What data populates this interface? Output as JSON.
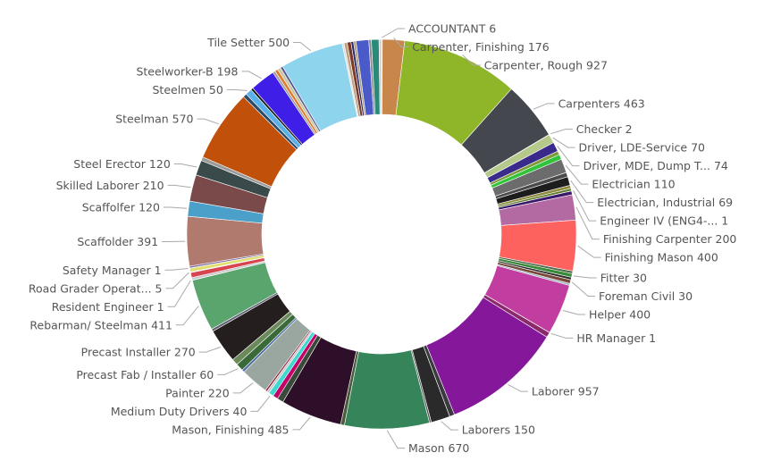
{
  "chart_data": {
    "type": "pie",
    "variant": "donut",
    "title": "",
    "legend": "none",
    "slices": [
      {
        "label": "ACCOUNTANT",
        "text": "ACCOUNTANT 6",
        "value": 6,
        "color": "#bbbbbb",
        "show": true
      },
      {
        "label": "Carpenter, Finishing",
        "text": "Carpenter, Finishing 176",
        "value": 176,
        "color": "#c8864a",
        "show": true
      },
      {
        "label": "Carpenter, Rough",
        "text": "Carpenter, Rough 927",
        "value": 927,
        "color": "#8fb528",
        "show": true
      },
      {
        "label": "Carpenters",
        "text": "Carpenters 463",
        "value": 463,
        "color": "#45474f",
        "show": true
      },
      {
        "label": "Checker",
        "text": "Checker 2",
        "value": 2,
        "color": "#999999",
        "show": true
      },
      {
        "label": "Driver, LDE-Service",
        "text": "Driver, LDE-Service 70",
        "value": 70,
        "color": "#b5c98a",
        "show": true
      },
      {
        "label": "Driver, MDE, Dump T...",
        "text": "Driver, MDE, Dump T... 74",
        "value": 74,
        "color": "#3a2a8c",
        "show": true
      },
      {
        "label": "",
        "text": "",
        "value": 30,
        "color": "#7d9b3a",
        "show": false
      },
      {
        "label": "",
        "text": "",
        "value": 40,
        "color": "#2fc43a",
        "show": false
      },
      {
        "label": "Electrician",
        "text": "Electrician 110",
        "value": 110,
        "color": "#6c6c6c",
        "show": true
      },
      {
        "label": "",
        "text": "",
        "value": 35,
        "color": "#4a4a4a",
        "show": false
      },
      {
        "label": "Electrician, Industrial",
        "text": "Electrician, Industrial 69",
        "value": 69,
        "color": "#1d1d1d",
        "show": true
      },
      {
        "label": "",
        "text": "",
        "value": 25,
        "color": "#8c8a3a",
        "show": false
      },
      {
        "label": "",
        "text": "",
        "value": 20,
        "color": "#5b7b2b",
        "show": false
      },
      {
        "label": "Engineer IV (ENG4-...",
        "text": "Engineer IV (ENG4-... 1",
        "value": 1,
        "color": "#5a3a9a",
        "show": true
      },
      {
        "label": "",
        "text": "",
        "value": 30,
        "color": "#3a1a6a",
        "show": false
      },
      {
        "label": "Finishing Carpenter",
        "text": "Finishing Carpenter 200",
        "value": 200,
        "color": "#b36aa3",
        "show": true
      },
      {
        "label": "Finishing Mason",
        "text": "Finishing Mason 400",
        "value": 400,
        "color": "#fd625e",
        "show": true
      },
      {
        "label": "",
        "text": "",
        "value": 20,
        "color": "#4a6a4a",
        "show": false
      },
      {
        "label": "Fitter",
        "text": "Fitter 30",
        "value": 30,
        "color": "#3a8a3a",
        "show": true
      },
      {
        "label": "",
        "text": "",
        "value": 20,
        "color": "#2a2a2a",
        "show": false
      },
      {
        "label": "Foreman Civil",
        "text": "Foreman Civil 30",
        "value": 30,
        "color": "#7a4a3a",
        "show": true
      },
      {
        "label": "",
        "text": "",
        "value": 15,
        "color": "#9ab0c0",
        "show": false
      },
      {
        "label": "Helper",
        "text": "Helper 400",
        "value": 400,
        "color": "#c13ea0",
        "show": true
      },
      {
        "label": "HR Manager",
        "text": "HR Manager 1",
        "value": 1,
        "color": "#6a2a5a",
        "show": true
      },
      {
        "label": "",
        "text": "",
        "value": 40,
        "color": "#8a2a6a",
        "show": false
      },
      {
        "label": "Laborer",
        "text": "Laborer 957",
        "value": 957,
        "color": "#84179a",
        "show": true
      },
      {
        "label": "",
        "text": "",
        "value": 40,
        "color": "#3a3a40",
        "show": false
      },
      {
        "label": "Laborers",
        "text": "Laborers 150",
        "value": 150,
        "color": "#2a2a2a",
        "show": true
      },
      {
        "label": "",
        "text": "",
        "value": 15,
        "color": "#5a5a60",
        "show": false
      },
      {
        "label": "Mason",
        "text": "Mason 670",
        "value": 670,
        "color": "#36845a",
        "show": true
      },
      {
        "label": "",
        "text": "",
        "value": 30,
        "color": "#4a5a3a",
        "show": false
      },
      {
        "label": "Mason, Finishing",
        "text": "Mason, Finishing 485",
        "value": 485,
        "color": "#2d0f2a",
        "show": true
      },
      {
        "label": "",
        "text": "",
        "value": 50,
        "color": "#3a4a3a",
        "show": false
      },
      {
        "label": "",
        "text": "",
        "value": 40,
        "color": "#c4006a",
        "show": false
      },
      {
        "label": "Medium Duty Drivers",
        "text": "Medium Duty Drivers 40",
        "value": 40,
        "color": "#3fd8d0",
        "show": true
      },
      {
        "label": "",
        "text": "",
        "value": 20,
        "color": "#c8c8c8",
        "show": false
      },
      {
        "label": "",
        "text": "",
        "value": 15,
        "color": "#8a1a3a",
        "show": false
      },
      {
        "label": "Painter",
        "text": "Painter 220",
        "value": 220,
        "color": "#9aa7a0",
        "show": true
      },
      {
        "label": "",
        "text": "",
        "value": 20,
        "color": "#4a6aa0",
        "show": false
      },
      {
        "label": "Precast Fab / Installer",
        "text": "Precast Fab / Installer 60",
        "value": 60,
        "color": "#3a6a3a",
        "show": true
      },
      {
        "label": "",
        "text": "",
        "value": 50,
        "color": "#6a8a5a",
        "show": false
      },
      {
        "label": "Precast Installer",
        "text": "Precast Installer 270",
        "value": 270,
        "color": "#251e1e",
        "show": true
      },
      {
        "label": "",
        "text": "",
        "value": 20,
        "color": "#5a5a70",
        "show": false
      },
      {
        "label": "Rebarman/ Steelman",
        "text": "Rebarman/ Steelman 411",
        "value": 411,
        "color": "#5aa46e",
        "show": true
      },
      {
        "label": "Resident Engineer",
        "text": "Resident Engineer 1",
        "value": 1,
        "color": "#909090",
        "show": true
      },
      {
        "label": "",
        "text": "",
        "value": 20,
        "color": "#c8c8c8",
        "show": false
      },
      {
        "label": "",
        "text": "",
        "value": 40,
        "color": "#d64550",
        "show": false
      },
      {
        "label": "Road Grader Operat...",
        "text": "Road Grader Operat... 5",
        "value": 5,
        "color": "#a0a0a0",
        "show": true
      },
      {
        "label": "",
        "text": "",
        "value": 30,
        "color": "#e0e070",
        "show": false
      },
      {
        "label": "Safety Manager",
        "text": "Safety Manager 1",
        "value": 1,
        "color": "#5a6a8a",
        "show": true
      },
      {
        "label": "",
        "text": "",
        "value": 15,
        "color": "#7a6aa0",
        "show": false
      },
      {
        "label": "Scaffolder",
        "text": "Scaffolder 391",
        "value": 391,
        "color": "#b07a6e",
        "show": true
      },
      {
        "label": "Scaffolfer",
        "text": "Scaffolfer 120",
        "value": 120,
        "color": "#4aa0c8",
        "show": true
      },
      {
        "label": "Skilled Laborer",
        "text": "Skilled Laborer 210",
        "value": 210,
        "color": "#7a4a4a",
        "show": true
      },
      {
        "label": "Steel Erector",
        "text": "Steel Erector 120",
        "value": 120,
        "color": "#3a4a4a",
        "show": true
      },
      {
        "label": "",
        "text": "",
        "value": 30,
        "color": "#9a9a9a",
        "show": false
      },
      {
        "label": "Steelman",
        "text": "Steelman 570",
        "value": 570,
        "color": "#c0500a",
        "show": true
      },
      {
        "label": "",
        "text": "",
        "value": 30,
        "color": "#2a4a6a",
        "show": false
      },
      {
        "label": "Steelmen",
        "text": "Steelmen 50",
        "value": 50,
        "color": "#5ab0e8",
        "show": true
      },
      {
        "label": "",
        "text": "",
        "value": 20,
        "color": "#1a1a1a",
        "show": false
      },
      {
        "label": "Steelworker-B",
        "text": "Steelworker-B 198",
        "value": 198,
        "color": "#3f1fe8",
        "show": true
      },
      {
        "label": "",
        "text": "",
        "value": 20,
        "color": "#a0a0a0",
        "show": false
      },
      {
        "label": "",
        "text": "",
        "value": 25,
        "color": "#e07a30",
        "show": false
      },
      {
        "label": "",
        "text": "",
        "value": 25,
        "color": "#c8c8a0",
        "show": false
      },
      {
        "label": "",
        "text": "",
        "value": 20,
        "color": "#5a5a9a",
        "show": false
      },
      {
        "label": "Tile Setter",
        "text": "Tile Setter 500",
        "value": 500,
        "color": "#8ed4ec",
        "show": true
      },
      {
        "label": "",
        "text": "",
        "value": 15,
        "color": "#e0e0e0",
        "show": false
      },
      {
        "label": "",
        "text": "",
        "value": 25,
        "color": "#c0a080",
        "show": false
      },
      {
        "label": "",
        "text": "",
        "value": 30,
        "color": "#7a3a2a",
        "show": false
      },
      {
        "label": "",
        "text": "",
        "value": 20,
        "color": "#2a2a6a",
        "show": false
      },
      {
        "label": "",
        "text": "",
        "value": 20,
        "color": "#b0a080",
        "show": false
      },
      {
        "label": "",
        "text": "",
        "value": 100,
        "color": "#4a5ac8",
        "show": false
      },
      {
        "label": "",
        "text": "",
        "value": 20,
        "color": "#8a8a8a",
        "show": false
      },
      {
        "label": "",
        "text": "",
        "value": 60,
        "color": "#2a8a7a",
        "show": false
      },
      {
        "label": "",
        "text": "",
        "value": 20,
        "color": "#d0d0d0",
        "show": false
      }
    ]
  }
}
